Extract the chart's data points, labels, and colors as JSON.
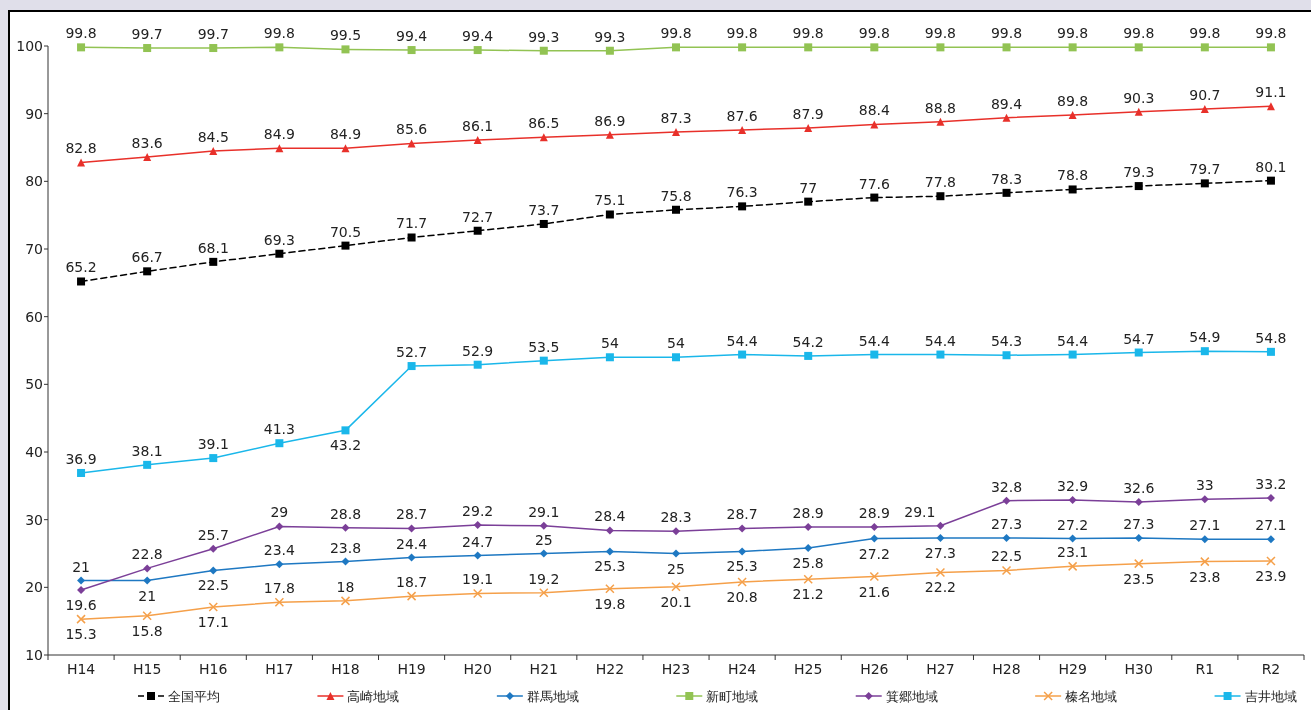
{
  "chart_data": {
    "type": "line",
    "categories": [
      "H14",
      "H15",
      "H16",
      "H17",
      "H18",
      "H19",
      "H20",
      "H21",
      "H22",
      "H23",
      "H24",
      "H25",
      "H26",
      "H27",
      "H28",
      "H29",
      "H30",
      "R1",
      "R2"
    ],
    "ylim": [
      10,
      100
    ],
    "yticks": [
      10,
      20,
      30,
      40,
      50,
      60,
      70,
      80,
      90,
      100
    ],
    "grid": false,
    "legend": "bottom",
    "data_labels": true,
    "series": [
      {
        "name": "全国平均",
        "color": "#000000",
        "marker": "square",
        "line_style": "dashed",
        "values": [
          65.2,
          66.7,
          68.1,
          69.3,
          70.5,
          71.7,
          72.7,
          73.7,
          75.1,
          75.8,
          76.3,
          77,
          77.6,
          77.8,
          78.3,
          78.8,
          79.3,
          79.7,
          80.1
        ]
      },
      {
        "name": "高崎地域",
        "color": "#e8302a",
        "marker": "triangle",
        "line_style": "solid",
        "values": [
          82.8,
          83.6,
          84.5,
          84.9,
          84.9,
          85.6,
          86.1,
          86.5,
          86.9,
          87.3,
          87.6,
          87.9,
          88.4,
          88.8,
          89.4,
          89.8,
          90.3,
          90.7,
          91.1
        ]
      },
      {
        "name": "群馬地域",
        "color": "#1e78c2",
        "marker": "diamond",
        "line_style": "solid",
        "values": [
          21,
          21,
          22.5,
          23.4,
          23.8,
          24.4,
          24.7,
          25,
          25.3,
          25,
          25.3,
          25.8,
          27.2,
          27.3,
          27.3,
          27.2,
          27.3,
          27.1,
          27.1
        ]
      },
      {
        "name": "新町地域",
        "color": "#92c353",
        "marker": "square",
        "line_style": "solid",
        "values": [
          99.8,
          99.7,
          99.7,
          99.8,
          99.5,
          99.4,
          99.4,
          99.3,
          99.3,
          99.8,
          99.8,
          99.8,
          99.8,
          99.8,
          99.8,
          99.8,
          99.8,
          99.8,
          99.8
        ]
      },
      {
        "name": "箕郷地域",
        "color": "#7b3f98",
        "marker": "diamond",
        "line_style": "solid",
        "values": [
          19.6,
          22.8,
          25.7,
          29,
          28.8,
          28.7,
          29.2,
          29.1,
          28.4,
          28.3,
          28.7,
          28.9,
          28.9,
          29.1,
          32.8,
          32.9,
          32.6,
          33,
          33.2
        ]
      },
      {
        "name": "榛名地域",
        "color": "#f5a04a",
        "marker": "cross",
        "line_style": "solid",
        "values": [
          15.3,
          15.8,
          17.1,
          17.8,
          18,
          18.7,
          19.1,
          19.2,
          19.8,
          20.1,
          20.8,
          21.2,
          21.6,
          22.2,
          22.5,
          23.1,
          23.5,
          23.8,
          23.9
        ]
      },
      {
        "name": "吉井地域",
        "color": "#1ab7ea",
        "marker": "square",
        "line_style": "solid",
        "values": [
          36.9,
          38.1,
          39.1,
          41.3,
          43.2,
          52.7,
          52.9,
          53.5,
          54,
          54,
          54.4,
          54.2,
          54.4,
          54.4,
          54.3,
          54.4,
          54.7,
          54.9,
          54.8
        ]
      }
    ]
  }
}
